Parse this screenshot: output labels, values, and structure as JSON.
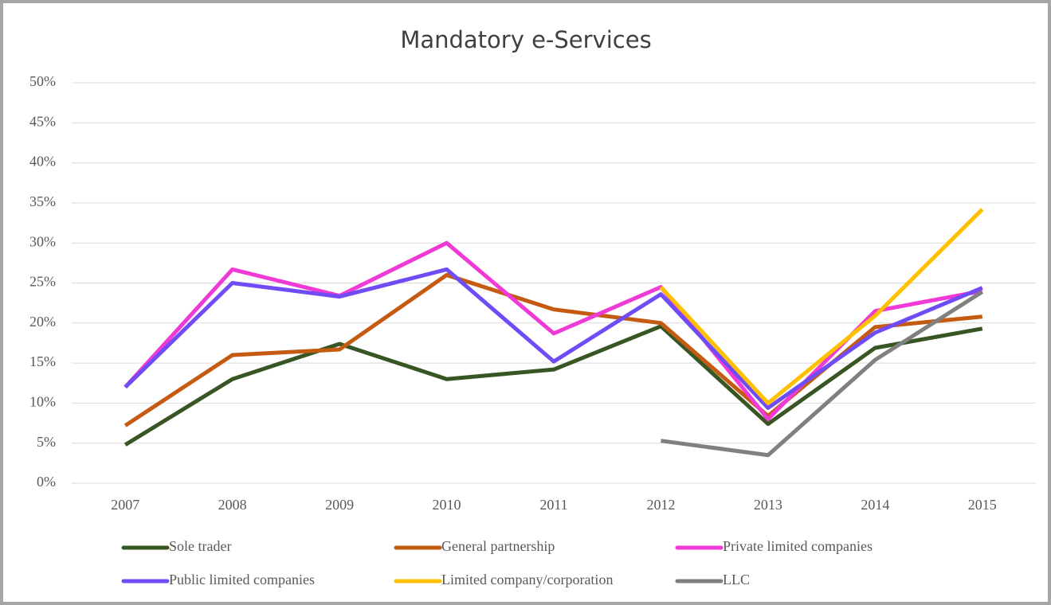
{
  "chart_data": {
    "type": "line",
    "title": "Mandatory e-Services",
    "categories": [
      "2007",
      "2008",
      "2009",
      "2010",
      "2011",
      "2012",
      "2013",
      "2014",
      "2015"
    ],
    "series": [
      {
        "name": "Sole trader",
        "color": "#375623",
        "values": [
          4.8,
          13.0,
          17.4,
          13.0,
          14.2,
          19.6,
          7.4,
          16.9,
          19.3
        ]
      },
      {
        "name": "General partnership",
        "color": "#c55a11",
        "values": [
          7.2,
          16.0,
          16.7,
          26.0,
          21.7,
          20.0,
          8.4,
          19.5,
          20.8
        ]
      },
      {
        "name": "Private limited companies",
        "color": "#f03ad6",
        "values": [
          12.0,
          26.7,
          23.4,
          30.0,
          18.7,
          24.5,
          8.0,
          21.5,
          24.0
        ]
      },
      {
        "name": "Public limited companies",
        "color": "#6f4cf5",
        "values": [
          12.0,
          25.0,
          23.3,
          26.7,
          15.2,
          23.6,
          9.4,
          18.8,
          24.4
        ]
      },
      {
        "name": "Limited company/corporation",
        "color": "#ffc000",
        "values": [
          null,
          null,
          null,
          null,
          null,
          24.5,
          10.0,
          20.9,
          34.2
        ]
      },
      {
        "name": "LLC",
        "color": "#808080",
        "values": [
          null,
          null,
          null,
          null,
          null,
          5.3,
          3.5,
          15.4,
          23.9
        ]
      }
    ],
    "ylim": [
      0,
      50
    ],
    "yticks": [
      {
        "value": 0,
        "label": "0%"
      },
      {
        "value": 5,
        "label": "5%"
      },
      {
        "value": 10,
        "label": "10%"
      },
      {
        "value": 15,
        "label": "15%"
      },
      {
        "value": 20,
        "label": "20%"
      },
      {
        "value": 25,
        "label": "25%"
      },
      {
        "value": 30,
        "label": "30%"
      },
      {
        "value": 35,
        "label": "35%"
      },
      {
        "value": 40,
        "label": "40%"
      },
      {
        "value": 45,
        "label": "45%"
      },
      {
        "value": 50,
        "label": "50%"
      }
    ],
    "grid": true
  }
}
